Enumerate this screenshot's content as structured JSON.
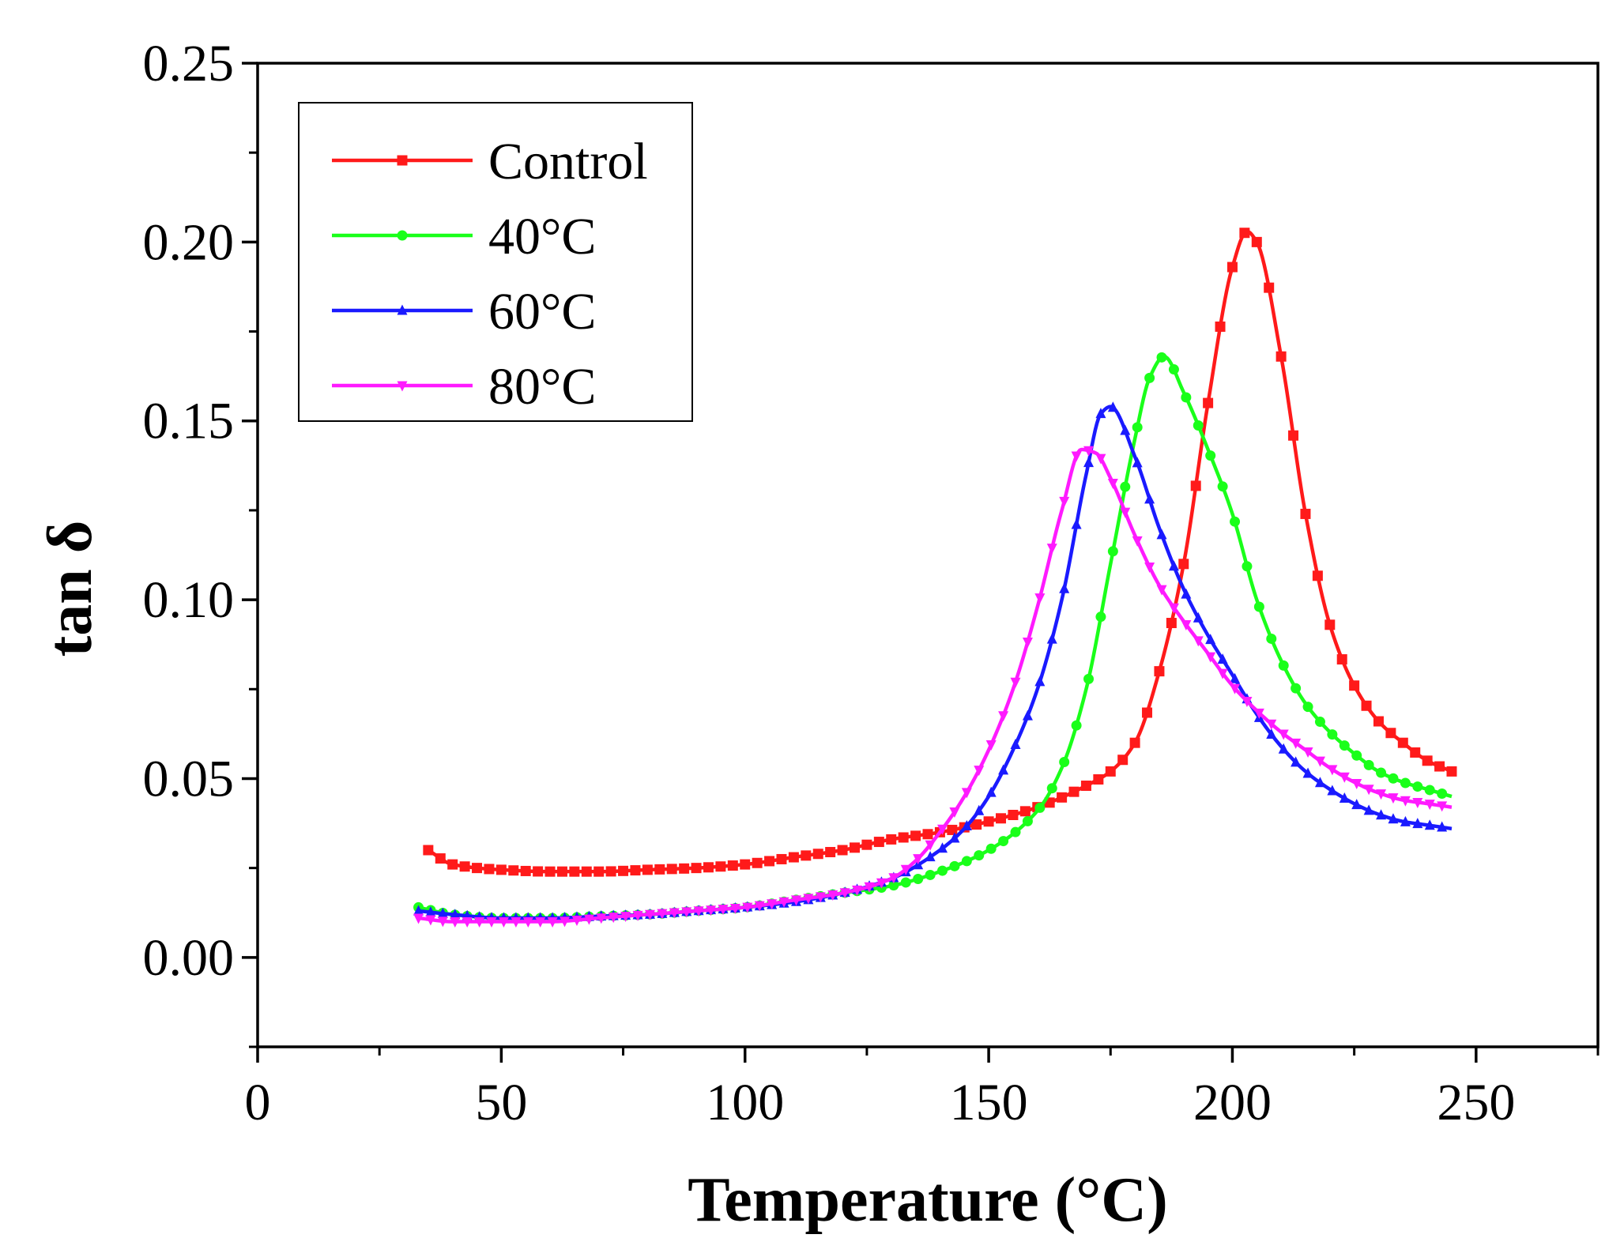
{
  "chart_data": {
    "type": "line",
    "title": "",
    "xlabel": "Temperature (°C)",
    "ylabel": "tan δ",
    "xlim": [
      0,
      275
    ],
    "ylim": [
      -0.025,
      0.25
    ],
    "x_ticks": [
      0,
      50,
      100,
      150,
      200,
      250
    ],
    "x_tick_labels": [
      "0",
      "50",
      "100",
      "150",
      "200",
      "250"
    ],
    "y_ticks": [
      0.0,
      0.05,
      0.1,
      0.15,
      0.2,
      0.25
    ],
    "y_tick_labels": [
      "0.00",
      "0.05",
      "0.10",
      "0.15",
      "0.20",
      "0.25"
    ],
    "grid": false,
    "legend_position": "top-left",
    "series": [
      {
        "name": "Control",
        "color": "#ff1a1a",
        "marker": "square",
        "x": [
          35,
          40,
          50,
          60,
          70,
          80,
          90,
          100,
          110,
          120,
          130,
          140,
          150,
          160,
          170,
          175,
          180,
          185,
          190,
          195,
          200,
          203,
          205,
          210,
          215,
          220,
          225,
          230,
          235,
          240,
          245
        ],
        "y": [
          0.03,
          0.026,
          0.0245,
          0.024,
          0.024,
          0.0245,
          0.025,
          0.026,
          0.028,
          0.03,
          0.033,
          0.035,
          0.038,
          0.042,
          0.048,
          0.052,
          0.06,
          0.08,
          0.11,
          0.155,
          0.193,
          0.203,
          0.2,
          0.168,
          0.124,
          0.093,
          0.076,
          0.066,
          0.06,
          0.055,
          0.052
        ]
      },
      {
        "name": "40°C",
        "color": "#1aff1a",
        "marker": "circle",
        "x": [
          33,
          40,
          50,
          60,
          70,
          80,
          90,
          100,
          110,
          120,
          130,
          140,
          150,
          160,
          165,
          170,
          175,
          180,
          183,
          186,
          190,
          195,
          200,
          205,
          210,
          215,
          220,
          225,
          230,
          235,
          240,
          245
        ],
        "y": [
          0.014,
          0.012,
          0.011,
          0.011,
          0.0115,
          0.012,
          0.013,
          0.014,
          0.016,
          0.018,
          0.02,
          0.024,
          0.03,
          0.041,
          0.053,
          0.075,
          0.11,
          0.145,
          0.162,
          0.168,
          0.158,
          0.142,
          0.124,
          0.1,
          0.083,
          0.071,
          0.063,
          0.057,
          0.052,
          0.049,
          0.047,
          0.045
        ]
      },
      {
        "name": "60°C",
        "color": "#1a1aff",
        "marker": "triangle-up",
        "x": [
          33,
          40,
          50,
          60,
          70,
          80,
          90,
          100,
          110,
          120,
          130,
          140,
          145,
          150,
          155,
          160,
          165,
          170,
          173,
          175,
          180,
          185,
          190,
          195,
          200,
          205,
          210,
          215,
          220,
          225,
          230,
          235,
          240,
          245
        ],
        "y": [
          0.013,
          0.012,
          0.011,
          0.011,
          0.0115,
          0.012,
          0.013,
          0.014,
          0.0155,
          0.018,
          0.022,
          0.03,
          0.036,
          0.045,
          0.058,
          0.075,
          0.1,
          0.135,
          0.152,
          0.154,
          0.14,
          0.12,
          0.103,
          0.09,
          0.079,
          0.068,
          0.059,
          0.052,
          0.047,
          0.043,
          0.04,
          0.038,
          0.037,
          0.036
        ]
      },
      {
        "name": "80°C",
        "color": "#ff1aff",
        "marker": "triangle-down",
        "x": [
          33,
          40,
          50,
          60,
          70,
          80,
          90,
          100,
          110,
          120,
          130,
          135,
          140,
          145,
          150,
          155,
          160,
          165,
          169,
          172,
          175,
          180,
          185,
          190,
          195,
          200,
          205,
          210,
          215,
          220,
          225,
          230,
          235,
          240,
          245
        ],
        "y": [
          0.011,
          0.01,
          0.01,
          0.01,
          0.011,
          0.012,
          0.013,
          0.014,
          0.016,
          0.018,
          0.022,
          0.027,
          0.035,
          0.045,
          0.058,
          0.075,
          0.098,
          0.125,
          0.142,
          0.141,
          0.134,
          0.118,
          0.104,
          0.094,
          0.085,
          0.076,
          0.069,
          0.063,
          0.058,
          0.053,
          0.049,
          0.046,
          0.044,
          0.043,
          0.042
        ]
      }
    ]
  }
}
